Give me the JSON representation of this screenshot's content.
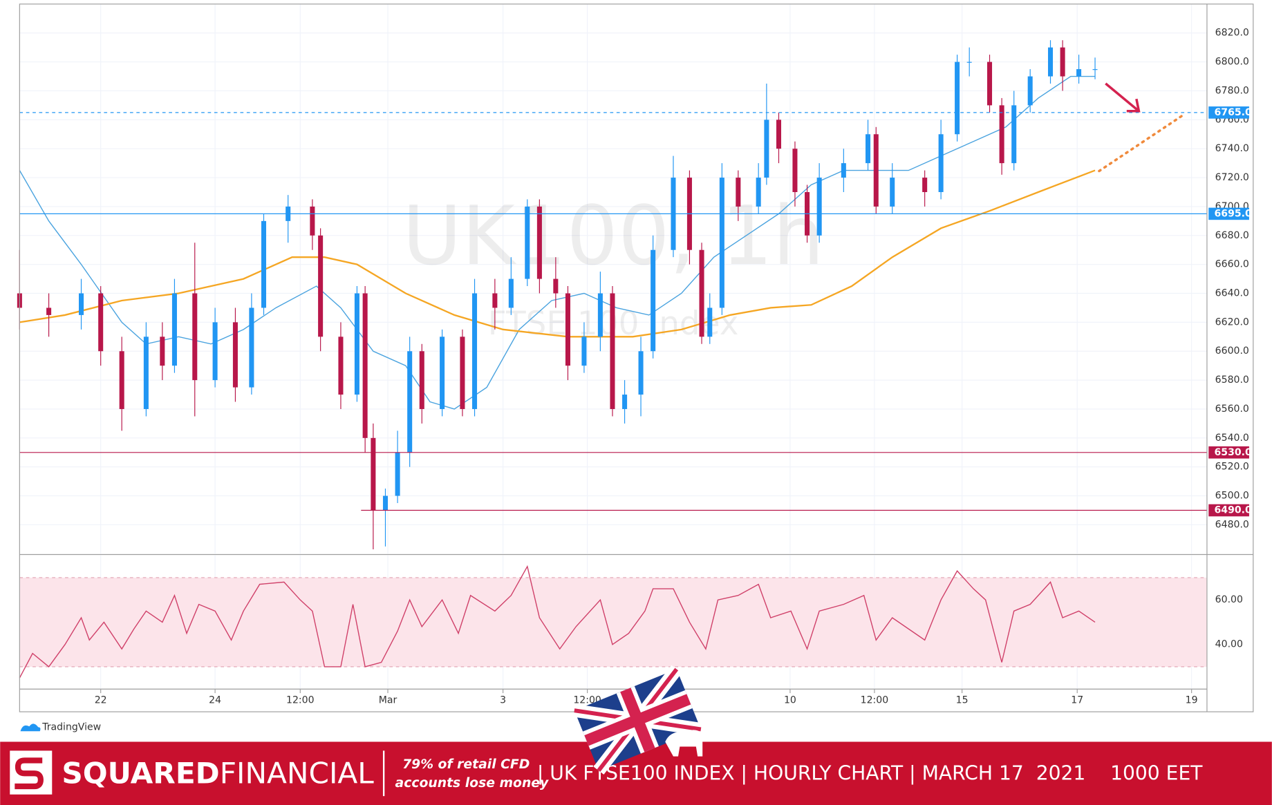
{
  "chart_data": [
    {
      "type": "candlestick",
      "watermark_title": "UK100, 1h",
      "watermark_subtitle": "FTSE 100 Index",
      "xlim": [
        0,
        1464
      ],
      "ylim": [
        6460,
        6840
      ],
      "yticks": [
        {
          "value": 6480,
          "label": "6480.0"
        },
        {
          "value": 6500,
          "label": "6500.0"
        },
        {
          "value": 6520,
          "label": "6520.0"
        },
        {
          "value": 6540,
          "label": "6540.0"
        },
        {
          "value": 6560,
          "label": "6560.0"
        },
        {
          "value": 6580,
          "label": "6580.0"
        },
        {
          "value": 6600,
          "label": "6600.0"
        },
        {
          "value": 6620,
          "label": "6620.0"
        },
        {
          "value": 6640,
          "label": "6640.0"
        },
        {
          "value": 6660,
          "label": "6660.0"
        },
        {
          "value": 6680,
          "label": "6680.0"
        },
        {
          "value": 6700,
          "label": "6700.0"
        },
        {
          "value": 6720,
          "label": "6720.0"
        },
        {
          "value": 6740,
          "label": "6740.0"
        },
        {
          "value": 6760,
          "label": "6760.0"
        },
        {
          "value": 6780,
          "label": "6780.0"
        },
        {
          "value": 6800,
          "label": "6800.0"
        },
        {
          "value": 6820,
          "label": "6820.0"
        }
      ],
      "grid": true,
      "up_color": "#2196f3",
      "down_color": "#b8174a",
      "x": [
        0,
        36,
        76,
        100,
        126,
        156,
        176,
        191,
        216,
        241,
        266,
        286,
        301,
        331,
        361,
        371,
        396,
        416,
        426,
        436,
        451,
        466,
        481,
        496,
        521,
        546,
        561,
        586,
        606,
        626,
        641,
        661,
        676,
        696,
        716,
        731,
        746,
        766,
        781,
        806,
        826,
        841,
        851,
        866,
        886,
        911,
        921,
        936,
        956,
        971,
        986,
        1016,
        1046,
        1056,
        1076,
        1116,
        1136,
        1156,
        1171,
        1196,
        1211,
        1226,
        1246,
        1271,
        1286,
        1306,
        1326
      ],
      "open": [
        6640,
        6630,
        6625,
        6640,
        6600,
        6560,
        6610,
        6590,
        6640,
        6580,
        6620,
        6575,
        6630,
        6690,
        6700,
        6680,
        6610,
        6570,
        6640,
        6540,
        6490,
        6500,
        6530,
        6600,
        6560,
        6610,
        6560,
        6640,
        6630,
        6650,
        6700,
        6650,
        6640,
        6590,
        6610,
        6640,
        6560,
        6570,
        6600,
        6670,
        6720,
        6670,
        6610,
        6630,
        6720,
        6700,
        6720,
        6760,
        6740,
        6710,
        6680,
        6720,
        6730,
        6750,
        6700,
        6720,
        6710,
        6750,
        6800,
        6800,
        6770,
        6730,
        6770,
        6790,
        6810,
        6790,
        6795
      ],
      "high": [
        6670,
        6640,
        6650,
        6645,
        6610,
        6620,
        6620,
        6650,
        6675,
        6630,
        6630,
        6640,
        6695,
        6708,
        6705,
        6685,
        6620,
        6645,
        6645,
        6550,
        6505,
        6545,
        6610,
        6605,
        6615,
        6615,
        6650,
        6650,
        6665,
        6705,
        6705,
        6665,
        6645,
        6620,
        6655,
        6645,
        6580,
        6610,
        6680,
        6735,
        6725,
        6675,
        6640,
        6730,
        6725,
        6730,
        6785,
        6765,
        6745,
        6715,
        6730,
        6740,
        6760,
        6755,
        6730,
        6725,
        6760,
        6805,
        6810,
        6805,
        6775,
        6780,
        6795,
        6815,
        6815,
        6805,
        6803
      ],
      "low": [
        6615,
        6610,
        6615,
        6590,
        6545,
        6555,
        6580,
        6585,
        6555,
        6575,
        6565,
        6570,
        6625,
        6675,
        6670,
        6600,
        6560,
        6565,
        6530,
        6463,
        6465,
        6495,
        6520,
        6550,
        6555,
        6555,
        6555,
        6615,
        6625,
        6645,
        6640,
        6630,
        6580,
        6585,
        6600,
        6555,
        6550,
        6555,
        6595,
        6665,
        6660,
        6605,
        6605,
        6625,
        6690,
        6695,
        6715,
        6730,
        6700,
        6675,
        6675,
        6710,
        6725,
        6695,
        6695,
        6700,
        6705,
        6745,
        6790,
        6765,
        6722,
        6725,
        6765,
        6785,
        6780,
        6785,
        6788
      ],
      "close": [
        6630,
        6625,
        6640,
        6600,
        6560,
        6610,
        6590,
        6640,
        6580,
        6620,
        6575,
        6630,
        6690,
        6700,
        6680,
        6610,
        6570,
        6640,
        6540,
        6490,
        6500,
        6530,
        6600,
        6560,
        6610,
        6560,
        6640,
        6630,
        6650,
        6700,
        6650,
        6640,
        6590,
        6610,
        6640,
        6560,
        6570,
        6600,
        6670,
        6720,
        6670,
        6610,
        6630,
        6720,
        6700,
        6720,
        6760,
        6740,
        6710,
        6680,
        6720,
        6730,
        6750,
        6700,
        6720,
        6710,
        6750,
        6800,
        6800,
        6770,
        6730,
        6770,
        6790,
        6810,
        6790,
        6795,
        6795
      ],
      "overlays": [
        {
          "color": "#4aa3df",
          "x": [
            0,
            36,
            76,
            126,
            156,
            196,
            236,
            276,
            316,
            366,
            396,
            436,
            476,
            506,
            536,
            576,
            616,
            656,
            696,
            736,
            776,
            816,
            856,
            896,
            936,
            976,
            1016,
            1056,
            1096,
            1136,
            1176,
            1216,
            1256,
            1296,
            1326
          ],
          "values": [
            6725,
            6690,
            6660,
            6620,
            6605,
            6610,
            6605,
            6615,
            6630,
            6645,
            6630,
            6600,
            6590,
            6565,
            6560,
            6575,
            6615,
            6635,
            6640,
            6630,
            6625,
            6640,
            6665,
            6680,
            6695,
            6715,
            6725,
            6725,
            6725,
            6735,
            6745,
            6755,
            6775,
            6790,
            6790
          ]
        },
        {
          "color": "#f5a623",
          "x": [
            0,
            56,
            126,
            196,
            276,
            336,
            376,
            416,
            476,
            536,
            596,
            676,
            756,
            816,
            876,
            926,
            976,
            1026,
            1076,
            1136,
            1196,
            1256,
            1326
          ],
          "values": [
            6620,
            6625,
            6635,
            6640,
            6650,
            6665,
            6665,
            6660,
            6640,
            6625,
            6615,
            6610,
            6610,
            6615,
            6625,
            6630,
            6632,
            6645,
            6665,
            6685,
            6697,
            6710,
            6725
          ]
        }
      ],
      "levels": [
        {
          "value": 6765,
          "label": "6765.0",
          "color": "#2196f3",
          "style": "dashed"
        },
        {
          "value": 6695,
          "label": "6695.0",
          "color": "#2196f3",
          "style": "solid"
        },
        {
          "value": 6530,
          "label": "6530.0",
          "color": "#b8174a",
          "style": "solid"
        },
        {
          "value": 6490,
          "label": "6490.0",
          "color": "#b8174a",
          "style": "solid",
          "xstart": 421
        }
      ]
    },
    {
      "type": "line",
      "color": "#d0416a",
      "xlim": [
        0,
        1464
      ],
      "ylim": [
        20,
        80
      ],
      "band": [
        30,
        70
      ],
      "band_color": "#fce4ea",
      "yticks": [
        {
          "value": 40,
          "label": "40.00"
        },
        {
          "value": 60,
          "label": "60.00"
        }
      ],
      "xticks": [
        {
          "value": 100,
          "label": "22"
        },
        {
          "value": 241,
          "label": "24"
        },
        {
          "value": 346,
          "label": "12:00"
        },
        {
          "value": 454,
          "label": "Mar"
        },
        {
          "value": 596,
          "label": "3"
        },
        {
          "value": 700,
          "label": "12:00"
        },
        {
          "value": 950,
          "label": "10"
        },
        {
          "value": 1054,
          "label": "12:00"
        },
        {
          "value": 1162,
          "label": "15"
        },
        {
          "value": 1304,
          "label": "17"
        },
        {
          "value": 1445,
          "label": "19"
        }
      ],
      "x": [
        0,
        16,
        36,
        56,
        76,
        86,
        104,
        126,
        141,
        156,
        176,
        191,
        206,
        221,
        241,
        261,
        276,
        296,
        326,
        346,
        361,
        376,
        396,
        411,
        426,
        446,
        466,
        481,
        496,
        521,
        541,
        556,
        586,
        606,
        626,
        641,
        666,
        686,
        716,
        731,
        751,
        771,
        781,
        806,
        826,
        846,
        861,
        886,
        911,
        926,
        951,
        971,
        986,
        1016,
        1041,
        1056,
        1076,
        1116,
        1136,
        1156,
        1176,
        1191,
        1211,
        1226,
        1246,
        1271,
        1286,
        1306,
        1326
      ],
      "values": [
        25,
        36,
        30,
        40,
        52,
        42,
        50,
        38,
        47,
        55,
        50,
        62,
        45,
        58,
        55,
        42,
        55,
        67,
        68,
        60,
        55,
        30,
        30,
        58,
        30,
        32,
        46,
        60,
        48,
        60,
        45,
        62,
        55,
        62,
        75,
        52,
        38,
        48,
        60,
        40,
        45,
        55,
        65,
        65,
        50,
        38,
        60,
        62,
        67,
        52,
        55,
        38,
        55,
        58,
        62,
        42,
        52,
        42,
        60,
        73,
        65,
        60,
        32,
        55,
        58,
        68,
        52,
        55,
        50
      ]
    }
  ],
  "branding": {
    "platform": "TradingView",
    "brand_bold": "SQUARED",
    "brand_light": "FINANCIAL",
    "risk_warning": [
      "79% of retail CFD",
      "accounts lose money"
    ],
    "caption": "| UK FTSE100 INDEX | HOURLY CHART | MARCH 17  2021    1000 EET"
  }
}
